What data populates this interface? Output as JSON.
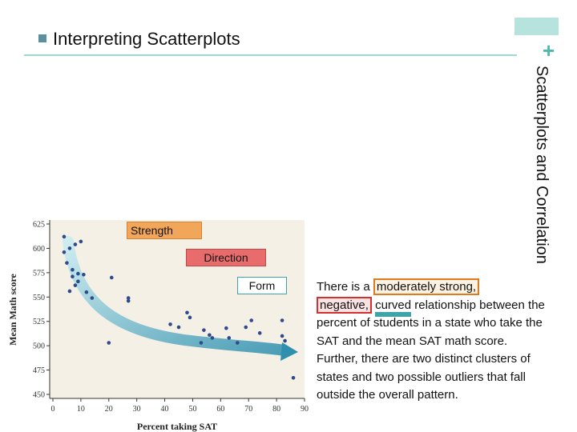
{
  "title": {
    "text": "Interpreting Scatterplots"
  },
  "side_label": "Scatterplots and Correlation",
  "corner_plus": "+",
  "tags": {
    "strength": "Strength",
    "direction": "Direction",
    "form": "Form"
  },
  "description": {
    "part1": "There is a ",
    "highlight_strength": "moderately strong,",
    "highlight_direction": "negative,",
    "space": " ",
    "highlight_form": "curved",
    "part2": " relationship between the percent of students in a state who take the SAT and the mean SAT math score.",
    "para2": "Further, there are two distinct clusters of states and two possible outliers that fall outside the overall pattern."
  },
  "colors": {
    "accent_teal": "#3fa3a8",
    "strength_orange": "#f2a65a",
    "direction_red": "#e86c6c",
    "points": "#2d4a8a",
    "plot_bg": "#f5f0e6"
  },
  "chart_data": {
    "type": "scatter",
    "xlabel": "Percent taking SAT",
    "ylabel": "Mean Math score",
    "xlim": [
      0,
      90
    ],
    "ylim": [
      450,
      625
    ],
    "x_ticks": [
      0,
      10,
      20,
      30,
      40,
      50,
      60,
      70,
      80,
      90
    ],
    "y_ticks": [
      450,
      475,
      500,
      525,
      550,
      575,
      600,
      625
    ],
    "grid": false,
    "points": [
      [
        4,
        612
      ],
      [
        4,
        596
      ],
      [
        5,
        585
      ],
      [
        6,
        600
      ],
      [
        6,
        556
      ],
      [
        7,
        578
      ],
      [
        7,
        571
      ],
      [
        8,
        562
      ],
      [
        8,
        604
      ],
      [
        9,
        574
      ],
      [
        9,
        566
      ],
      [
        10,
        607
      ],
      [
        11,
        573
      ],
      [
        12,
        555
      ],
      [
        14,
        549
      ],
      [
        20,
        503
      ],
      [
        21,
        570
      ],
      [
        27,
        549
      ],
      [
        27,
        546
      ],
      [
        42,
        522
      ],
      [
        45,
        519
      ],
      [
        48,
        534
      ],
      [
        49,
        529
      ],
      [
        53,
        503
      ],
      [
        54,
        516
      ],
      [
        56,
        511
      ],
      [
        57,
        508
      ],
      [
        62,
        518
      ],
      [
        63,
        508
      ],
      [
        66,
        503
      ],
      [
        69,
        519
      ],
      [
        71,
        526
      ],
      [
        74,
        513
      ],
      [
        82,
        526
      ],
      [
        82,
        510
      ],
      [
        83,
        505
      ],
      [
        86,
        467
      ]
    ]
  }
}
